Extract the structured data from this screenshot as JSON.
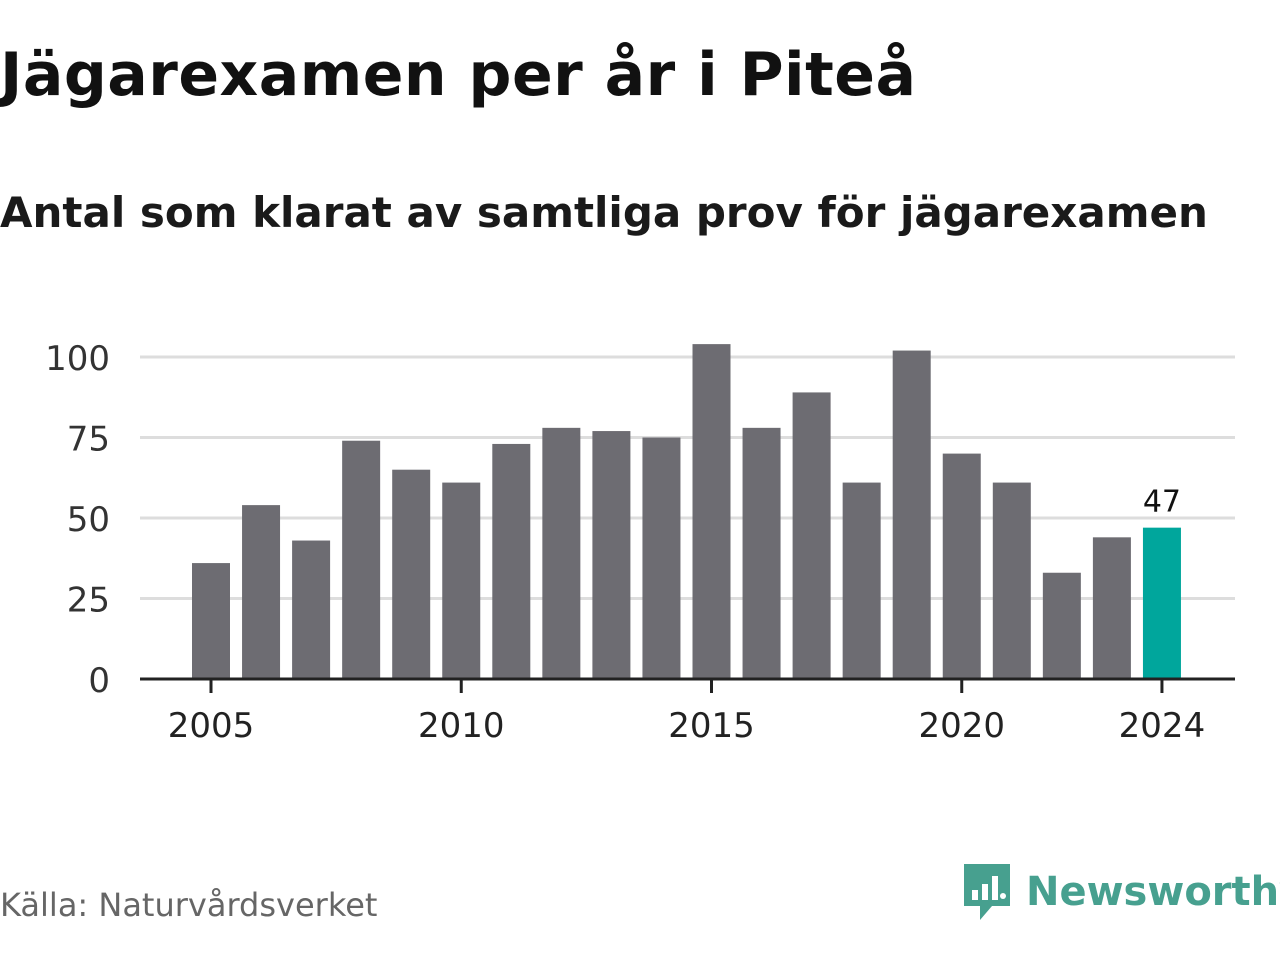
{
  "title": "Jägarexamen per år i Piteå",
  "subtitle": "Antal som klarat av samtliga prov för jägarexamen",
  "source": "Källa: Naturvårdsverket",
  "brand": "Newsworthy",
  "colors": {
    "bar": "#6d6c72",
    "highlight": "#00a69c",
    "grid": "#dddddd",
    "axis": "#222222",
    "brand": "#47a08f"
  },
  "logo_icon": "newsworthy-logo-icon",
  "chart_data": {
    "type": "bar",
    "x": [
      2005,
      2006,
      2007,
      2008,
      2009,
      2010,
      2011,
      2012,
      2013,
      2014,
      2015,
      2016,
      2017,
      2018,
      2019,
      2020,
      2021,
      2022,
      2023,
      2024
    ],
    "values": [
      36,
      54,
      43,
      74,
      65,
      61,
      73,
      78,
      77,
      75,
      104,
      78,
      89,
      61,
      102,
      70,
      61,
      33,
      44,
      47
    ],
    "highlight_index": 19,
    "annotations": [
      {
        "x": 2024,
        "label": "47"
      }
    ],
    "x_ticks": [
      "2005",
      "2010",
      "2015",
      "2020",
      "2024"
    ],
    "y_ticks": [
      "0",
      "25",
      "50",
      "75",
      "100"
    ],
    "ylim": [
      0,
      110
    ],
    "grid": true,
    "legend": false
  }
}
